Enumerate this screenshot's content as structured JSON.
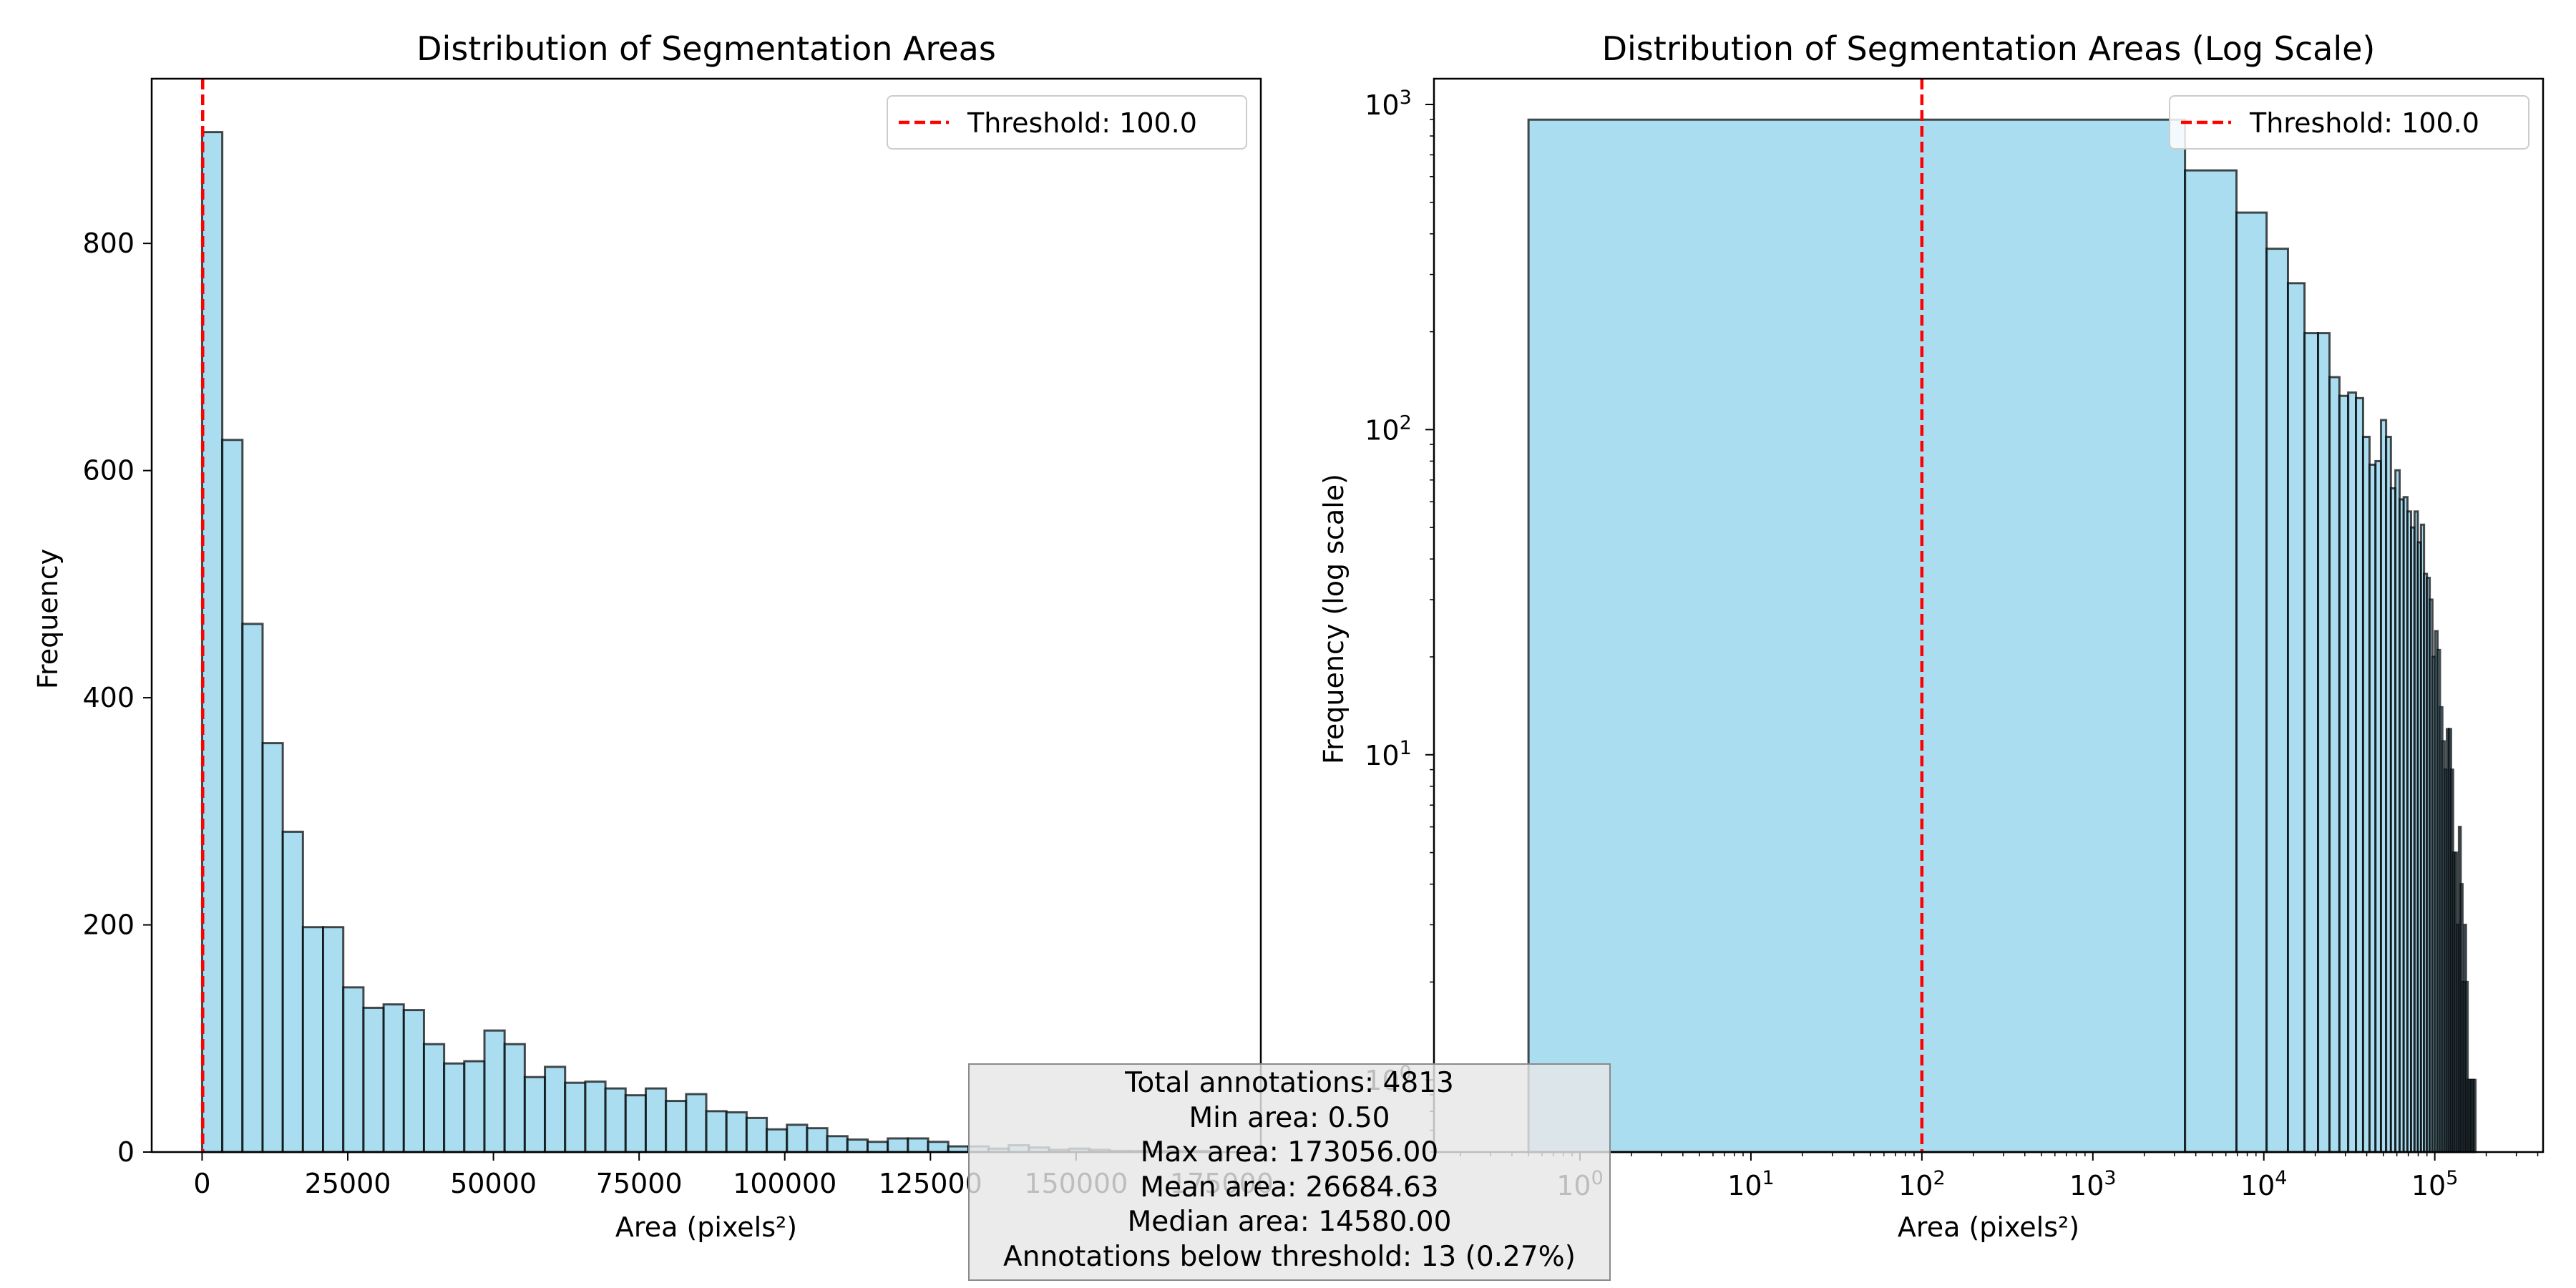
{
  "colors": {
    "bar_fill": "#87ceeb",
    "bar_edge": "#000000",
    "threshold_line": "#ff0000"
  },
  "threshold": {
    "value": 100.0,
    "legend_label": "Threshold: 100.0"
  },
  "chart_data": [
    {
      "type": "bar",
      "title": "Distribution of Segmentation Areas",
      "xlabel": "Area (pixels²)",
      "ylabel": "Frequency",
      "x_ticks": [
        0,
        25000,
        50000,
        75000,
        100000,
        125000,
        150000,
        175000
      ],
      "y_ticks": [
        0,
        200,
        400,
        600,
        800
      ],
      "xlim": [
        -8650,
        181700
      ],
      "ylim": [
        0,
        945
      ],
      "bin_start": 0.5,
      "bin_width": 3461.1,
      "values": [
        898,
        627,
        465,
        360,
        282,
        198,
        198,
        145,
        127,
        130,
        125,
        95,
        78,
        80,
        107,
        95,
        66,
        75,
        61,
        62,
        56,
        50,
        56,
        45,
        51,
        36,
        35,
        30,
        20,
        24,
        21,
        14,
        11,
        9,
        12,
        12,
        9,
        5,
        5,
        3,
        6,
        4,
        2,
        3,
        2,
        1,
        1,
        1,
        1,
        1
      ],
      "legend": {
        "position": "upper right",
        "entries": [
          "Threshold: 100.0"
        ]
      },
      "grid": false
    },
    {
      "type": "bar",
      "title": "Distribution of Segmentation Areas (Log Scale)",
      "xlabel": "Area (pixels²)",
      "ylabel": "Frequency (log scale)",
      "x_scale": "log",
      "y_scale": "log",
      "x_tick_labels": [
        "10^0",
        "10^1",
        "10^2",
        "10^3",
        "10^4",
        "10^5"
      ],
      "y_tick_labels": [
        "10^0",
        "10^1",
        "10^2",
        "10^3"
      ],
      "xlim": [
        0.14,
        430000
      ],
      "ylim": [
        0.6,
        1200
      ],
      "bin_edges_start": 0.5,
      "bin_width": 3461.1,
      "values": [
        898,
        627,
        465,
        360,
        282,
        198,
        198,
        145,
        127,
        130,
        125,
        95,
        78,
        80,
        107,
        95,
        66,
        75,
        61,
        62,
        56,
        50,
        56,
        45,
        51,
        36,
        35,
        30,
        20,
        24,
        21,
        14,
        11,
        9,
        12,
        12,
        9,
        5,
        5,
        3,
        6,
        4,
        2,
        3,
        2,
        1,
        1,
        1,
        1,
        1
      ],
      "legend": {
        "position": "upper right",
        "entries": [
          "Threshold: 100.0"
        ]
      },
      "grid": false
    }
  ],
  "stats": {
    "line1": "Total annotations: 4813",
    "line2": "Min area: 0.50",
    "line3": "Max area: 173056.00",
    "line4": "Mean area: 26684.63",
    "line5": "Median area: 14580.00",
    "line6": "Annotations below threshold: 13 (0.27%)"
  }
}
